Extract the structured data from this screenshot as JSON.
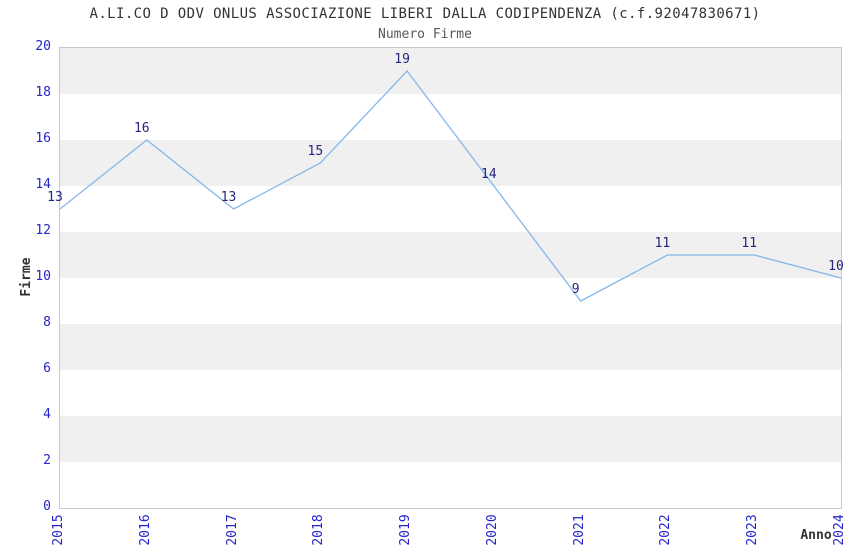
{
  "chart_data": {
    "type": "line",
    "title": "A.LI.CO D ODV ONLUS ASSOCIAZIONE LIBERI DALLA CODIPENDENZA (c.f.92047830671)",
    "subtitle": "Numero Firme",
    "xlabel": "Anno",
    "ylabel": "Firme",
    "categories": [
      "2015",
      "2016",
      "2017",
      "2018",
      "2019",
      "2020",
      "2021",
      "2022",
      "2023",
      "2024"
    ],
    "values": [
      13,
      16,
      13,
      15,
      19,
      14,
      9,
      11,
      11,
      10
    ],
    "ylim": [
      0,
      20
    ],
    "ytick_step": 2,
    "grid": "horizontal-alternating-bands",
    "legend": "none",
    "colors": {
      "line": "#85b7ea",
      "point_label": "#26267e",
      "tick_label": "#2424cc",
      "title": "#333333",
      "subtitle": "#595959",
      "band_gray": "#f0f0f0",
      "band_white": "#ffffff",
      "plot_border": "#c9c9c9",
      "background": "#ffffff"
    }
  }
}
